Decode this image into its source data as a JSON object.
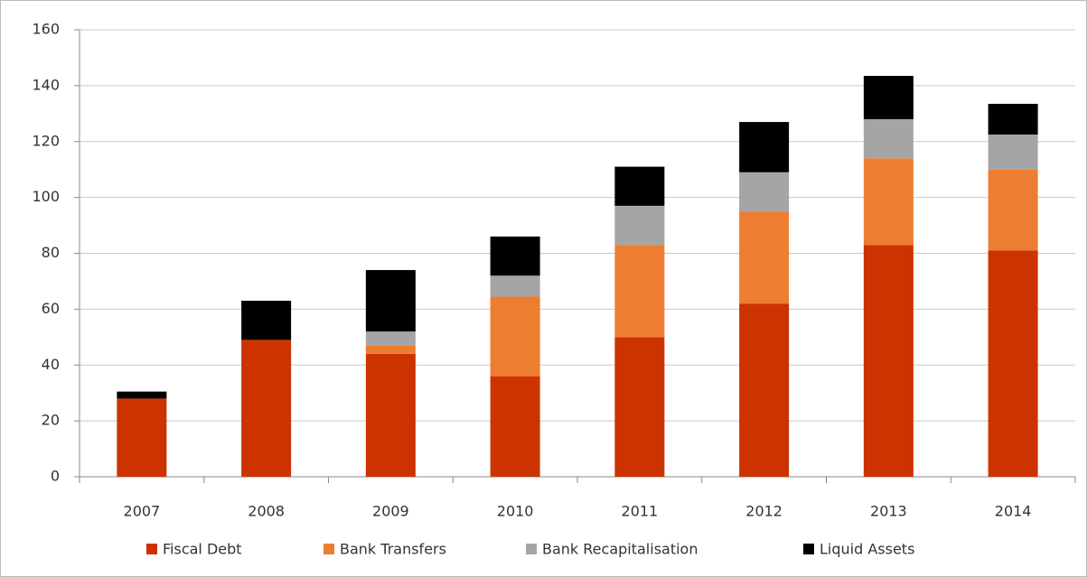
{
  "chart_data": {
    "type": "stacked_bar",
    "categories": [
      "2007",
      "2008",
      "2009",
      "2010",
      "2011",
      "2012",
      "2013",
      "2014"
    ],
    "series": [
      {
        "name": "Fiscal Debt",
        "color": "#cc3300",
        "values": [
          28,
          49,
          44,
          36,
          50,
          62,
          83,
          81
        ]
      },
      {
        "name": "Bank Transfers",
        "color": "#ed7d31",
        "values": [
          0,
          0,
          3,
          28.5,
          33,
          33,
          31,
          29
        ]
      },
      {
        "name": "Bank Recapitalisation",
        "color": "#a5a5a5",
        "values": [
          0,
          0,
          5,
          7.5,
          14,
          14,
          14,
          12.5
        ]
      },
      {
        "name": "Liquid Assets",
        "color": "#000000",
        "values": [
          2.5,
          14,
          22,
          14,
          14,
          18,
          15.5,
          11
        ]
      }
    ],
    "ylim": [
      0,
      160
    ],
    "yticks": [
      0,
      20,
      40,
      60,
      80,
      100,
      120,
      140,
      160
    ],
    "grid": true
  }
}
